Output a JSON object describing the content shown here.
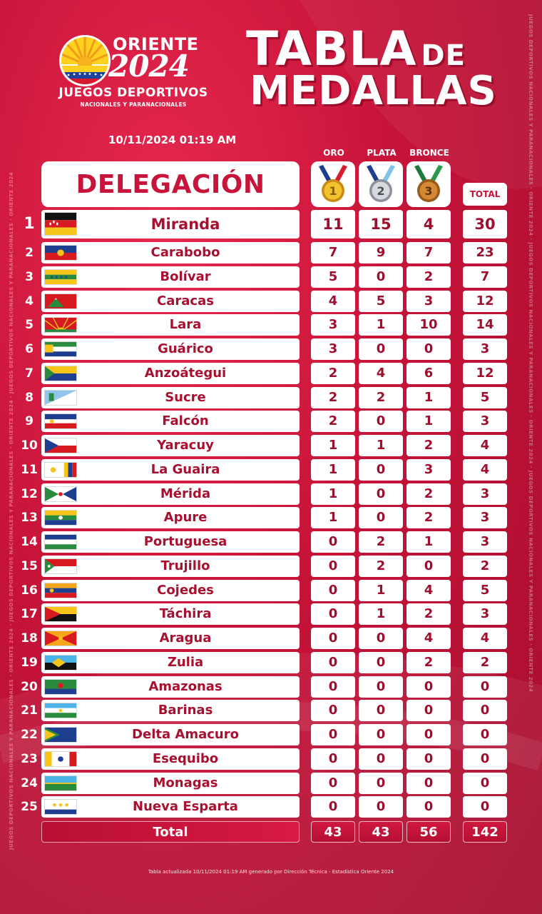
{
  "header": {
    "logo_oriente": "ORIENTE",
    "logo_year": "2024",
    "logo_juegos": "JUEGOS DEPORTIVOS",
    "logo_subtitle": "NACIONALES Y PARANACIONALES",
    "title_line1": "TABLA",
    "title_de": "DE",
    "title_line2": "MEDALLAS",
    "timestamp": "10/11/2024 01:19 AM"
  },
  "side_text": "JUEGOS DEPORTIVOS NACIONALES Y PARANACIONALES · ORIENTE 2024 · JUEGOS DEPORTIVOS NACIONALES Y PARANACIONALES · ORIENTE 2024 · JUEGOS DEPORTIVOS NACIONALES Y PARANACIONALES · ORIENTE 2024",
  "table": {
    "delegation_header": "DELEGACIÓN",
    "col_gold": "ORO",
    "col_silver": "PLATA",
    "col_bronze": "BRONCE",
    "col_total": "TOTAL",
    "medal_icons": [
      "gold-medal-icon",
      "silver-medal-icon",
      "bronze-medal-icon"
    ],
    "rows": [
      {
        "rank": "1",
        "name": "Miranda",
        "gold": "11",
        "silver": "15",
        "bronze": "4",
        "total": "30",
        "flag": "miranda"
      },
      {
        "rank": "2",
        "name": "Carabobo",
        "gold": "7",
        "silver": "9",
        "bronze": "7",
        "total": "23",
        "flag": "carabobo"
      },
      {
        "rank": "3",
        "name": "Bolívar",
        "gold": "5",
        "silver": "0",
        "bronze": "2",
        "total": "7",
        "flag": "bolivar"
      },
      {
        "rank": "4",
        "name": "Caracas",
        "gold": "4",
        "silver": "5",
        "bronze": "3",
        "total": "12",
        "flag": "caracas"
      },
      {
        "rank": "5",
        "name": "Lara",
        "gold": "3",
        "silver": "1",
        "bronze": "10",
        "total": "14",
        "flag": "lara"
      },
      {
        "rank": "6",
        "name": "Guárico",
        "gold": "3",
        "silver": "0",
        "bronze": "0",
        "total": "3",
        "flag": "guarico"
      },
      {
        "rank": "7",
        "name": "Anzoátegui",
        "gold": "2",
        "silver": "4",
        "bronze": "6",
        "total": "12",
        "flag": "anzoategui"
      },
      {
        "rank": "8",
        "name": "Sucre",
        "gold": "2",
        "silver": "2",
        "bronze": "1",
        "total": "5",
        "flag": "sucre"
      },
      {
        "rank": "9",
        "name": "Falcón",
        "gold": "2",
        "silver": "0",
        "bronze": "1",
        "total": "3",
        "flag": "falcon"
      },
      {
        "rank": "10",
        "name": "Yaracuy",
        "gold": "1",
        "silver": "1",
        "bronze": "2",
        "total": "4",
        "flag": "yaracuy"
      },
      {
        "rank": "11",
        "name": "La Guaira",
        "gold": "1",
        "silver": "0",
        "bronze": "3",
        "total": "4",
        "flag": "laguaira"
      },
      {
        "rank": "12",
        "name": "Mérida",
        "gold": "1",
        "silver": "0",
        "bronze": "2",
        "total": "3",
        "flag": "merida"
      },
      {
        "rank": "13",
        "name": "Apure",
        "gold": "1",
        "silver": "0",
        "bronze": "2",
        "total": "3",
        "flag": "apure"
      },
      {
        "rank": "14",
        "name": "Portuguesa",
        "gold": "0",
        "silver": "2",
        "bronze": "1",
        "total": "3",
        "flag": "portuguesa"
      },
      {
        "rank": "15",
        "name": "Trujillo",
        "gold": "0",
        "silver": "2",
        "bronze": "0",
        "total": "2",
        "flag": "trujillo"
      },
      {
        "rank": "16",
        "name": "Cojedes",
        "gold": "0",
        "silver": "1",
        "bronze": "4",
        "total": "5",
        "flag": "cojedes"
      },
      {
        "rank": "17",
        "name": "Táchira",
        "gold": "0",
        "silver": "1",
        "bronze": "2",
        "total": "3",
        "flag": "tachira"
      },
      {
        "rank": "18",
        "name": "Aragua",
        "gold": "0",
        "silver": "0",
        "bronze": "4",
        "total": "4",
        "flag": "aragua"
      },
      {
        "rank": "19",
        "name": "Zulia",
        "gold": "0",
        "silver": "0",
        "bronze": "2",
        "total": "2",
        "flag": "zulia"
      },
      {
        "rank": "20",
        "name": "Amazonas",
        "gold": "0",
        "silver": "0",
        "bronze": "0",
        "total": "0",
        "flag": "amazonas"
      },
      {
        "rank": "21",
        "name": "Barinas",
        "gold": "0",
        "silver": "0",
        "bronze": "0",
        "total": "0",
        "flag": "barinas"
      },
      {
        "rank": "22",
        "name": "Delta Amacuro",
        "gold": "0",
        "silver": "0",
        "bronze": "0",
        "total": "0",
        "flag": "delta"
      },
      {
        "rank": "23",
        "name": "Esequibo",
        "gold": "0",
        "silver": "0",
        "bronze": "0",
        "total": "0",
        "flag": "esequibo"
      },
      {
        "rank": "24",
        "name": "Monagas",
        "gold": "0",
        "silver": "0",
        "bronze": "0",
        "total": "0",
        "flag": "monagas"
      },
      {
        "rank": "25",
        "name": "Nueva Esparta",
        "gold": "0",
        "silver": "0",
        "bronze": "0",
        "total": "0",
        "flag": "nuevaesparta"
      }
    ],
    "totals": {
      "label": "Total",
      "gold": "43",
      "silver": "43",
      "bronze": "56",
      "total": "142"
    }
  },
  "footer": "Tabla actualizada 10/11/2024 01:19 AM generado por Dirección Técnica - Estadística Oriente 2024",
  "colors": {
    "background": "#c61338",
    "accent_text": "#a8102f",
    "gold": "#e8b31c",
    "silver": "#c9ccd2",
    "bronze": "#c9862f"
  }
}
